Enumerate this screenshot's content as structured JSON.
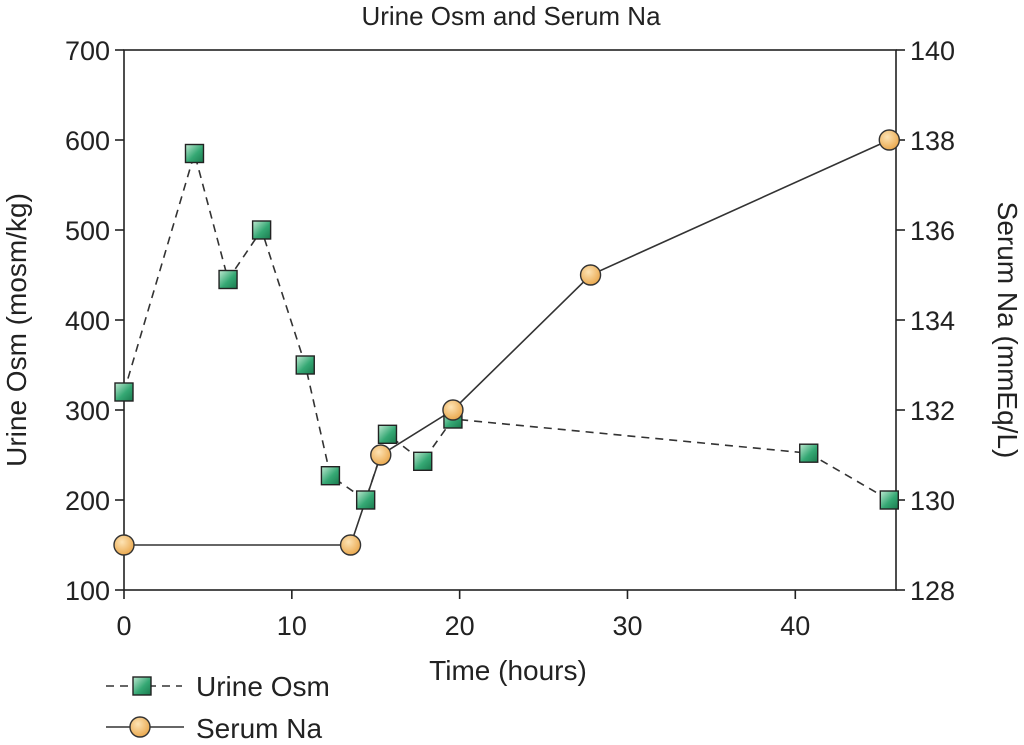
{
  "chart_data": {
    "type": "line",
    "title": "Urine Osm and Serum Na",
    "xlabel": "Time (hours)",
    "ylabel": "Urine Osm (mosm/kg)",
    "y2label": "Serum Na (mmEq/L)",
    "xlim": [
      0,
      46
    ],
    "ylim": [
      100,
      700
    ],
    "y2lim": [
      128,
      140
    ],
    "xticks": [
      "0",
      "10",
      "20",
      "30",
      "40"
    ],
    "yticks": [
      "100",
      "200",
      "300",
      "400",
      "500",
      "600",
      "700"
    ],
    "y2ticks": [
      "128",
      "130",
      "132",
      "134",
      "136",
      "138",
      "140"
    ],
    "grid": false,
    "legend_position": "bottom-left",
    "series": [
      {
        "name": "Urine Osm",
        "axis": "left",
        "marker": "square",
        "line": "dashed",
        "color": "#2a9a66",
        "x": [
          0,
          4.2,
          6.2,
          8.2,
          10.8,
          12.3,
          14.4,
          15.7,
          17.8,
          19.6,
          40.8,
          45.6
        ],
        "values": [
          320,
          585,
          445,
          500,
          350,
          227,
          200,
          273,
          243,
          290,
          252,
          200
        ]
      },
      {
        "name": "Serum Na",
        "axis": "right",
        "marker": "circle",
        "line": "solid",
        "color": "#f1b45e",
        "x": [
          0,
          13.5,
          15.3,
          19.6,
          27.8,
          45.6
        ],
        "values": [
          129,
          129,
          131,
          132,
          135,
          138
        ]
      }
    ]
  }
}
